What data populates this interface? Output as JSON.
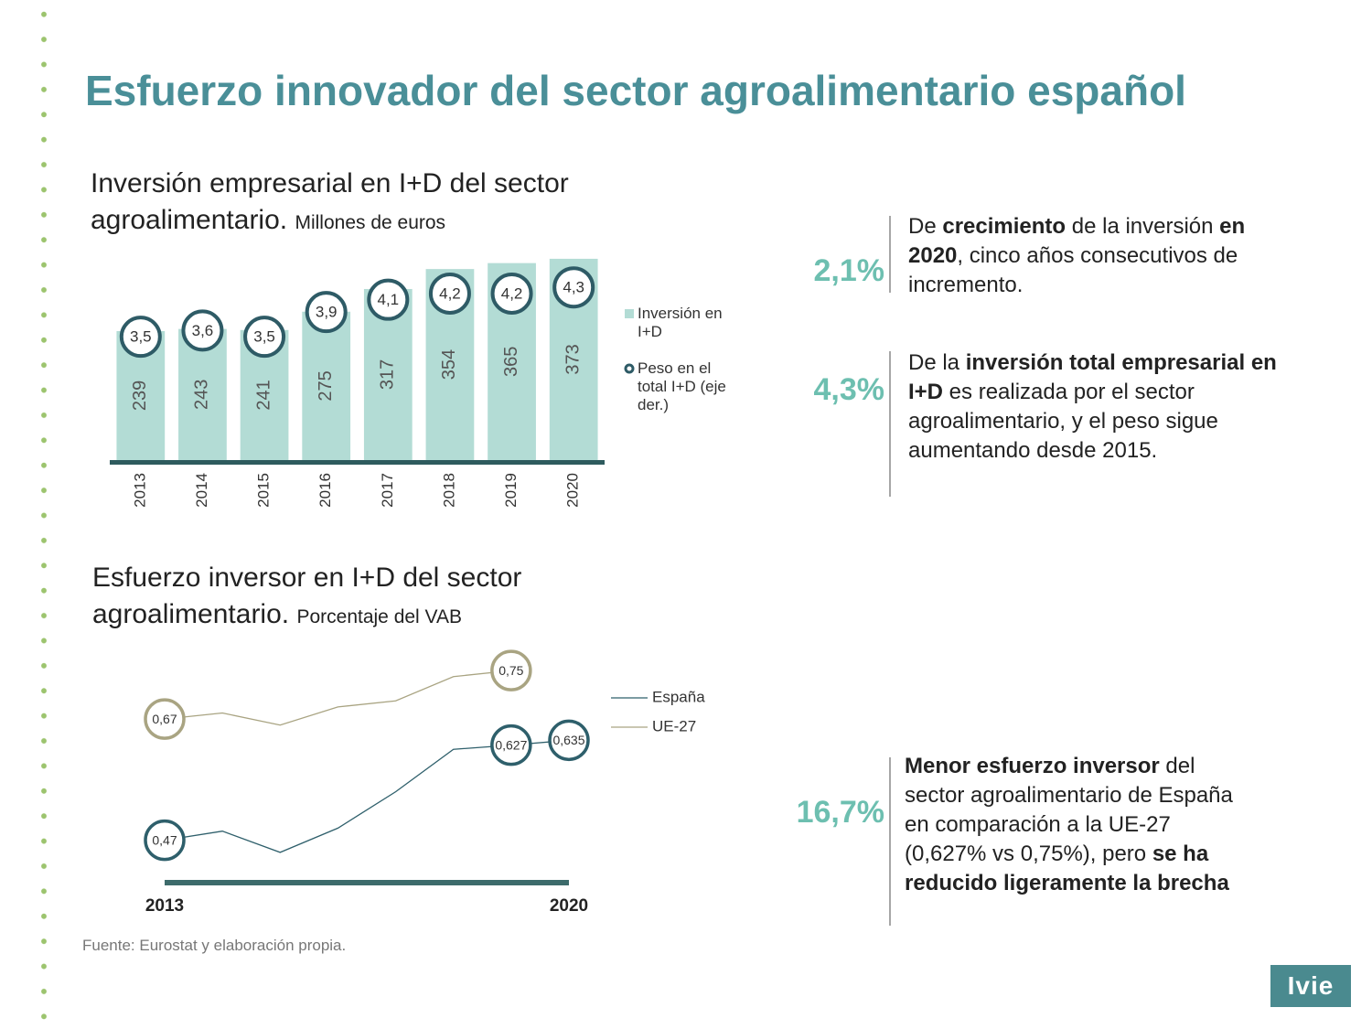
{
  "title": "Esfuerzo innovador del sector agroalimentario español",
  "chart_data": [
    {
      "type": "bar",
      "title": "Inversión empresarial en I+D del sector agroalimentario.",
      "subtitle": "Millones de euros",
      "categories": [
        "2013",
        "2014",
        "2015",
        "2016",
        "2017",
        "2018",
        "2019",
        "2020"
      ],
      "series": [
        {
          "name": "Inversión en I+D",
          "color": "#b3dcd5",
          "values": [
            239,
            243,
            241,
            275,
            317,
            354,
            365,
            373
          ]
        },
        {
          "name": "Peso en el total I+D (eje der.)",
          "color": "#2e5b66",
          "axis": "y2",
          "values": [
            3.5,
            3.6,
            3.5,
            3.9,
            4.1,
            4.2,
            4.2,
            4.3
          ],
          "value_labels": [
            "3,5",
            "3,6",
            "3,5",
            "3,9",
            "4,1",
            "4,2",
            "4,2",
            "4,3"
          ]
        }
      ],
      "ylim": [
        0,
        400
      ],
      "y2lim": [
        1.5,
        5
      ]
    },
    {
      "type": "line",
      "title": "Esfuerzo inversor en I+D del sector agroalimentario.",
      "subtitle": "Porcentaje del VAB",
      "categories": [
        "2013",
        null,
        null,
        null,
        null,
        null,
        null,
        "2020"
      ],
      "series": [
        {
          "name": "España",
          "color": "#2e5f6b",
          "values": [
            0.47,
            0.485,
            0.45,
            0.49,
            0.55,
            0.62,
            0.627,
            0.635
          ],
          "value_labels": [
            "0,47",
            null,
            null,
            null,
            null,
            null,
            "0,627",
            "0,635"
          ]
        },
        {
          "name": "UE-27",
          "color": "#a9a482",
          "values": [
            0.67,
            0.68,
            0.66,
            0.69,
            0.7,
            0.74,
            0.75,
            null
          ],
          "value_labels": [
            "0,67",
            null,
            null,
            null,
            null,
            null,
            "0,75",
            null
          ]
        }
      ],
      "ylim": [
        0.4,
        0.8
      ]
    }
  ],
  "highlights": [
    {
      "value": "2,1%",
      "parts": [
        {
          "text": "De ",
          "bold": false
        },
        {
          "text": "crecimiento",
          "bold": true
        },
        {
          "text": " de la inversión ",
          "bold": false
        },
        {
          "text": "en 2020",
          "bold": true
        },
        {
          "text": ", cinco años consecutivos de incremento.",
          "bold": false
        }
      ]
    },
    {
      "value": "4,3%",
      "parts": [
        {
          "text": "De la ",
          "bold": false
        },
        {
          "text": "inversión total empresarial en I+D",
          "bold": true
        },
        {
          "text": " es realizada por el sector agroalimentario, y el peso sigue aumentando desde 2015.",
          "bold": false
        }
      ]
    },
    {
      "value": "16,7%",
      "parts": [
        {
          "text": "Menor esfuerzo inversor",
          "bold": true
        },
        {
          "text": " del sector agroalimentario de España en comparación a la UE-27 (0,627% vs 0,75%), pero ",
          "bold": false
        },
        {
          "text": "se ha reducido ligeramente la brecha",
          "bold": true
        }
      ]
    }
  ],
  "source": "Fuente: Eurostat y elaboración propia.",
  "logo": "Ivie"
}
